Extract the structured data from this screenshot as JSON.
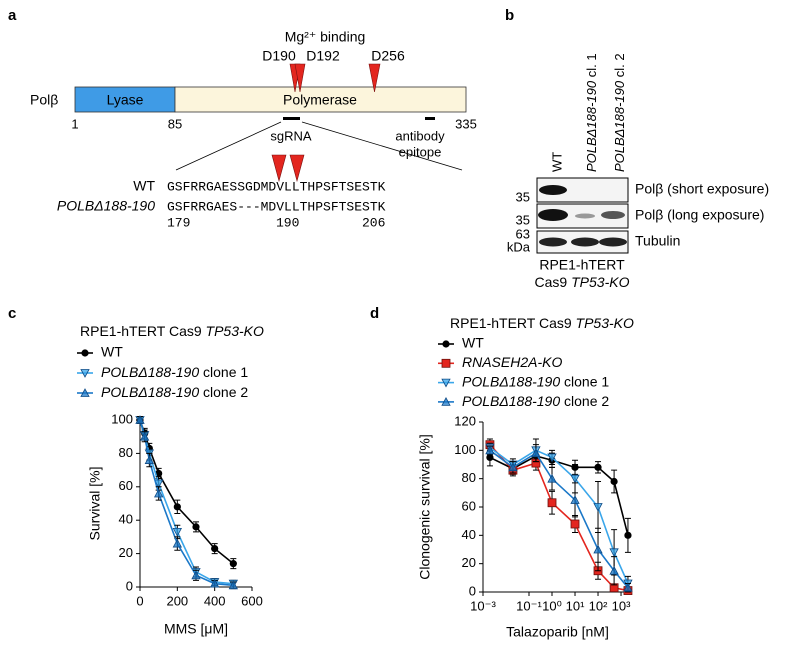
{
  "panel_a": {
    "label": "a",
    "annotation": "Mg²⁺ binding",
    "residues": [
      "D190",
      "D192",
      "D256"
    ],
    "protein": "Polβ",
    "domains": [
      "Lyase",
      "Polymerase"
    ],
    "positions": [
      "1",
      "85",
      "335"
    ],
    "sgrna": "sgRNA",
    "epitope": [
      "antibody",
      "epitope"
    ],
    "alignment": {
      "rows": [
        {
          "label": "WT",
          "sequence": "GSFRRGAESSGDMDVLLTHPSFTSESTK"
        },
        {
          "label": "POLBΔ188-190",
          "sequence": "GSFRRGAES---MDVLLTHPSFTSESTK"
        }
      ],
      "numbers": [
        "179",
        "190",
        "206"
      ]
    }
  },
  "panel_b": {
    "label": "b",
    "lanes": [
      "WT",
      "POLBΔ188-190 cl. 1",
      "POLBΔ188-190 cl. 2"
    ],
    "markers": [
      "35",
      "35",
      "63"
    ],
    "marker_unit": "kDa",
    "blots": [
      "Polβ (short exposure)",
      "Polβ (long exposure)",
      "Tubulin"
    ],
    "cell_line": [
      "RPE1-hTERT",
      "Cas9 TP53-KO"
    ]
  },
  "chart_data": [
    {
      "type": "line",
      "label": "c",
      "title": "RPE1-hTERT Cas9 TP53-KO",
      "title_italic": "last",
      "x_label": "MMS [μM]",
      "y_label": "Survival [%]",
      "x": [
        0,
        25,
        50,
        100,
        200,
        300,
        400,
        500
      ],
      "xlim": [
        0,
        600
      ],
      "xticks": [
        0,
        200,
        400,
        600
      ],
      "ylim": [
        0,
        100
      ],
      "yticks": [
        0,
        20,
        40,
        60,
        80,
        100
      ],
      "log_x": false,
      "series": [
        {
          "name": "WT",
          "color": "#000000",
          "marker": "circle",
          "italic": "none",
          "values": [
            100,
            92,
            83,
            68,
            48,
            36,
            23,
            14
          ],
          "errors": [
            2,
            3,
            3,
            3,
            4,
            3,
            3,
            3
          ]
        },
        {
          "name": "POLBΔ188-190 clone 1",
          "color": "#3aa6ea",
          "marker": "triangle-down",
          "italic": "first",
          "values": [
            100,
            91,
            80,
            62,
            33,
            9,
            3,
            2
          ],
          "errors": [
            2,
            3,
            4,
            4,
            4,
            3,
            2,
            2
          ]
        },
        {
          "name": "POLBΔ188-190 clone 2",
          "color": "#1b78c8",
          "marker": "triangle-up",
          "italic": "first",
          "values": [
            100,
            90,
            76,
            56,
            26,
            7,
            2,
            1
          ],
          "errors": [
            2,
            3,
            4,
            4,
            4,
            3,
            2,
            2
          ]
        }
      ]
    },
    {
      "type": "line",
      "label": "d",
      "title": "RPE1-hTERT Cas9 TP53-KO",
      "title_italic": "last",
      "x_label": "Talazoparib [nM]",
      "y_label": "Clonogenic survival [%]",
      "x": [
        0.002,
        0.02,
        0.2,
        1,
        10,
        100,
        500,
        2000
      ],
      "xlim": [
        0.001,
        3000
      ],
      "log_x": true,
      "xticks": [
        {
          "value": 0.001,
          "label": "10⁻³"
        },
        {
          "value": 0.1,
          "label": "10⁻¹"
        },
        {
          "value": 1,
          "label": "10⁰"
        },
        {
          "value": 10,
          "label": "10¹"
        },
        {
          "value": 100,
          "label": "10²"
        },
        {
          "value": 1000,
          "label": "10³"
        }
      ],
      "ylim": [
        0,
        120
      ],
      "yticks": [
        0,
        20,
        40,
        60,
        80,
        100,
        120
      ],
      "series": [
        {
          "name": "WT",
          "color": "#000000",
          "marker": "circle",
          "italic": "none",
          "values": [
            95,
            87,
            96,
            93,
            88,
            88,
            78,
            40
          ],
          "errors": [
            6,
            4,
            3,
            5,
            5,
            4,
            8,
            12
          ]
        },
        {
          "name": "RNASEH2A-KO",
          "color": "#e3261f",
          "marker": "square",
          "italic": "all",
          "values": [
            104,
            86,
            91,
            63,
            48,
            15,
            3,
            1
          ],
          "errors": [
            4,
            4,
            5,
            8,
            6,
            6,
            2,
            1
          ]
        },
        {
          "name": "POLBΔ188-190 clone 1",
          "color": "#3aa6ea",
          "marker": "triangle-down",
          "italic": "first",
          "values": [
            102,
            90,
            100,
            95,
            80,
            60,
            28,
            6
          ],
          "errors": [
            3,
            4,
            8,
            5,
            10,
            18,
            16,
            5
          ]
        },
        {
          "name": "POLBΔ188-190 clone 2",
          "color": "#1b78c8",
          "marker": "triangle-up",
          "italic": "first",
          "values": [
            100,
            88,
            98,
            80,
            65,
            30,
            15,
            3
          ],
          "errors": [
            3,
            4,
            6,
            8,
            12,
            15,
            10,
            3
          ]
        }
      ]
    }
  ]
}
